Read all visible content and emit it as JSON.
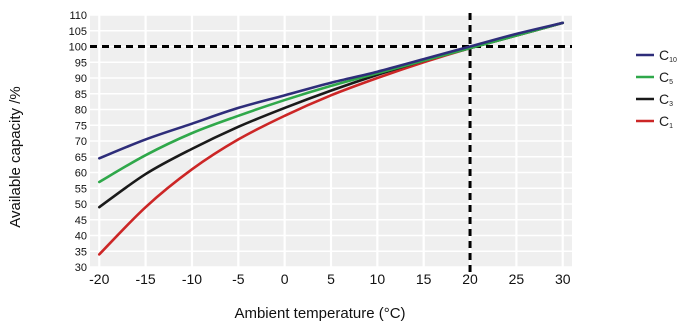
{
  "chart_data": {
    "type": "line",
    "xlabel": "Ambient temperature (°C)",
    "ylabel": "Available capacity /%",
    "xlim": [
      -21,
      31
    ],
    "ylim": [
      30,
      110
    ],
    "x_ticks": [
      -20,
      -15,
      -10,
      -5,
      0,
      5,
      10,
      15,
      20,
      25,
      30
    ],
    "x_tick_labels": [
      "-20",
      "-15",
      "-10",
      "-5",
      "0",
      "5",
      "10",
      "15",
      "20",
      "25",
      "30"
    ],
    "y_ticks": [
      30,
      35,
      40,
      45,
      50,
      55,
      60,
      65,
      70,
      75,
      80,
      85,
      90,
      95,
      100,
      105,
      110
    ],
    "y_tick_labels": [
      "30",
      "35",
      "40",
      "45",
      "50",
      "55",
      "60",
      "65",
      "70",
      "75",
      "80",
      "85",
      "90",
      "95",
      "100",
      "105",
      "110"
    ],
    "grid": true,
    "legend_position": "right",
    "reference_lines": {
      "x": 20,
      "y": 100
    },
    "x": [
      -20,
      -15,
      -10,
      -5,
      0,
      5,
      10,
      15,
      20,
      25,
      30
    ],
    "series": [
      {
        "name": "C",
        "sub": "10",
        "color": "#2e2d7a",
        "values": [
          64.5,
          70.5,
          75.5,
          80.5,
          84.5,
          88.5,
          92,
          96,
          100,
          104,
          107.5
        ]
      },
      {
        "name": "C",
        "sub": "5",
        "color": "#2fa84a",
        "values": [
          57,
          65.5,
          72.5,
          78,
          83,
          87.5,
          91.5,
          95.5,
          99.5,
          103.5,
          107.5
        ]
      },
      {
        "name": "C",
        "sub": "3",
        "color": "#1a1a1a",
        "values": [
          49,
          59.5,
          67.5,
          74.5,
          80.5,
          86,
          91,
          95.5,
          99.5,
          103.5,
          107.5
        ]
      },
      {
        "name": "C",
        "sub": "1",
        "color": "#cc2626",
        "values": [
          34,
          49,
          61,
          70.5,
          78,
          84.5,
          90,
          95,
          99.5,
          103.5,
          107.5
        ]
      }
    ]
  }
}
